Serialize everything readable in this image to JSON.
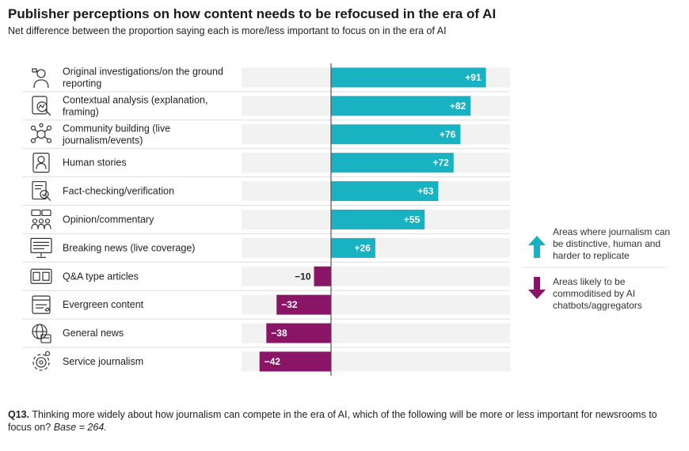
{
  "title": "Publisher perceptions on how content needs to be refocused in the era of AI",
  "subtitle": "Net difference between the proportion saying each is more/less important to focus on in the era of AI",
  "colors": {
    "positive": "#19b2c2",
    "negative": "#8a1466",
    "track": "#f2f2f2",
    "axis": "#555555"
  },
  "legend": {
    "up_label": "Areas where journalism can be distinctive, human and harder to replicate",
    "down_label": "Areas likely to be commoditised by AI chatbots/aggregators",
    "up_icon": "arrow-up-icon",
    "down_icon": "arrow-down-icon"
  },
  "footnote": {
    "question": "Q13.",
    "text": " Thinking more widely about how journalism can compete in the era of AI, which of the following will be more or less important for newsrooms to focus on? ",
    "base": "Base = 264."
  },
  "chart_data": {
    "type": "bar",
    "orientation": "horizontal",
    "categories": [
      "Original investigations/on the ground reporting",
      "Contextual analysis (explanation, framing)",
      "Community building (live journalism/events)",
      "Human stories",
      "Fact-checking/verification",
      "Opinion/commentary",
      "Breaking news (live coverage)",
      "Q&A type articles",
      "Evergreen content",
      "General news",
      "Service journalism"
    ],
    "category_lines": [
      [
        "Original investigations/on the ground",
        "reporting"
      ],
      [
        "Contextual analysis (explanation,",
        "framing)"
      ],
      [
        "Community building (live",
        "journalism/events)"
      ],
      [
        "Human stories"
      ],
      [
        "Fact-checking/verification"
      ],
      [
        "Opinion/commentary"
      ],
      [
        "Breaking news (live coverage)"
      ],
      [
        "Q&A type articles"
      ],
      [
        "Evergreen content"
      ],
      [
        "General news"
      ],
      [
        "Service journalism"
      ]
    ],
    "values": [
      91,
      82,
      76,
      72,
      63,
      55,
      26,
      -10,
      -32,
      -38,
      -42
    ],
    "data_labels": [
      "+91",
      "+82",
      "+76",
      "+72",
      "+63",
      "+55",
      "+26",
      "−10",
      "−32",
      "−38",
      "−42"
    ],
    "icons": [
      "reporter-icon",
      "analysis-magnifier-icon",
      "community-network-icon",
      "human-story-icon",
      "fact-check-icon",
      "opinion-group-icon",
      "breaking-news-icon",
      "qa-icon",
      "evergreen-document-icon",
      "general-news-globe-icon",
      "service-gear-icon"
    ],
    "xlim": [
      -100,
      100
    ],
    "grid": false,
    "legend_position": "right"
  }
}
